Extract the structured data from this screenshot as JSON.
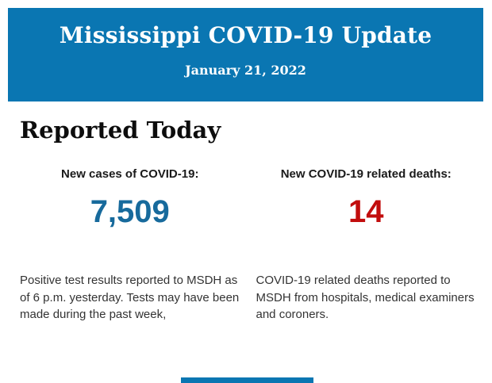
{
  "header": {
    "title": "Mississippi COVID-19 Update",
    "date": "January 21, 2022"
  },
  "section": {
    "heading": "Reported Today"
  },
  "stats": {
    "cases": {
      "label": "New cases of COVID-19:",
      "value": "7,509",
      "description": "Positive test results reported to MSDH as of 6 p.m. yesterday. Tests may have been made during the past week,"
    },
    "deaths": {
      "label": "New COVID-19 related deaths:",
      "value": "14",
      "description": "COVID-19 related deaths reported to MSDH from hospitals, medical examiners and coroners."
    }
  },
  "colors": {
    "banner_blue": "#0a76b2",
    "cases_value_blue": "#176a9c",
    "deaths_value_red": "#c20d0d",
    "banner_text": "#ffffff",
    "body_text": "#333333"
  }
}
